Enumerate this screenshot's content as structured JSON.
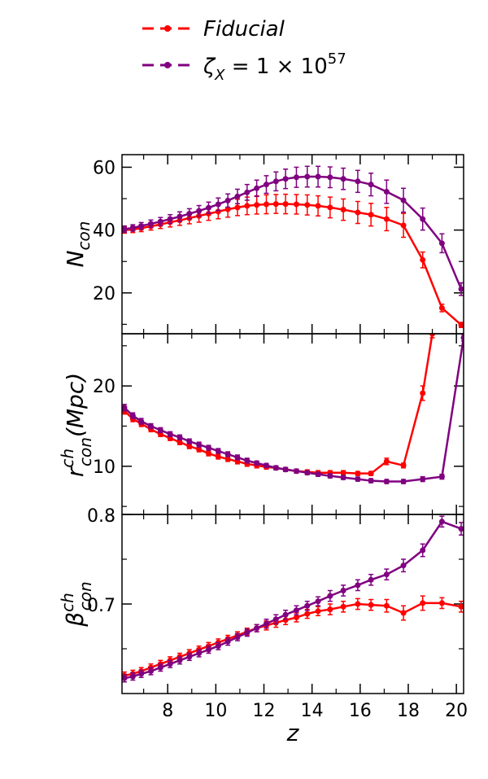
{
  "legend": [
    {
      "label": "Fiducial",
      "color": "#ff0000",
      "series": "fiducial"
    },
    {
      "label_base": "ζ",
      "label_sub": "X",
      "label_mid": " = 1 × 10",
      "label_sup": "57",
      "color": "#800080",
      "series": "zeta"
    }
  ],
  "chart_data": [
    {
      "type": "line",
      "panel": "top",
      "ylabel_base": "N",
      "ylabel_sub": "con",
      "xlim": [
        6.1,
        20.3
      ],
      "ylim": [
        7,
        64
      ],
      "yticks_major": [
        20,
        40,
        60
      ],
      "yticks_minor": [
        10,
        30,
        50
      ],
      "series": [
        {
          "name": "Fiducial",
          "color": "#ff0000",
          "x": [
            6.2,
            6.55,
            6.9,
            7.3,
            7.7,
            8.1,
            8.5,
            8.9,
            9.3,
            9.7,
            10.1,
            10.5,
            10.9,
            11.3,
            11.7,
            12.1,
            12.5,
            12.9,
            13.35,
            13.8,
            14.25,
            14.75,
            15.3,
            15.9,
            16.45,
            17.1,
            17.8,
            18.6,
            19.4,
            20.2
          ],
          "y": [
            40.0,
            40.2,
            40.6,
            41.2,
            41.8,
            42.5,
            43.1,
            43.8,
            44.5,
            45.2,
            45.9,
            46.6,
            47.2,
            47.7,
            48.0,
            48.2,
            48.3,
            48.3,
            48.2,
            48.0,
            47.7,
            47.2,
            46.5,
            45.6,
            44.9,
            43.5,
            41.5,
            30.5,
            15.2,
            9.8
          ],
          "yerr": [
            1.0,
            1.0,
            1.1,
            1.2,
            1.3,
            1.5,
            1.6,
            1.8,
            2.0,
            2.1,
            2.3,
            2.5,
            2.6,
            2.8,
            2.9,
            3.0,
            3.0,
            3.1,
            3.1,
            3.2,
            3.2,
            3.3,
            3.4,
            3.5,
            3.6,
            3.7,
            3.8,
            2.5,
            1.2,
            0.8
          ]
        },
        {
          "name": "ζX = 1 × 10^57",
          "color": "#800080",
          "x": [
            6.2,
            6.55,
            6.9,
            7.3,
            7.7,
            8.1,
            8.5,
            8.9,
            9.3,
            9.7,
            10.1,
            10.5,
            10.9,
            11.3,
            11.7,
            12.1,
            12.5,
            12.9,
            13.35,
            13.8,
            14.25,
            14.75,
            15.3,
            15.9,
            16.45,
            17.1,
            17.8,
            18.6,
            19.4,
            20.2
          ],
          "y": [
            40.3,
            40.7,
            41.3,
            42.0,
            42.7,
            43.5,
            44.3,
            45.2,
            46.1,
            47.1,
            48.2,
            49.4,
            50.7,
            52.0,
            53.3,
            54.5,
            55.5,
            56.3,
            56.8,
            57.0,
            57.0,
            56.8,
            56.3,
            55.5,
            54.5,
            52.2,
            49.5,
            43.5,
            35.8,
            21.2
          ],
          "yerr": [
            1.0,
            1.0,
            1.1,
            1.2,
            1.3,
            1.4,
            1.5,
            1.6,
            1.7,
            1.8,
            2.0,
            2.1,
            2.3,
            2.5,
            2.6,
            2.8,
            3.0,
            3.1,
            3.2,
            3.3,
            3.3,
            3.3,
            3.4,
            3.5,
            3.6,
            3.7,
            3.8,
            3.5,
            3.0,
            2.0
          ]
        }
      ]
    },
    {
      "type": "line",
      "panel": "middle",
      "ylabel_base": "r",
      "ylabel_sup": "ch",
      "ylabel_sub": "con",
      "ylabel_suffix": "(Mpc)",
      "xlim": [
        6.1,
        20.3
      ],
      "ylim": [
        4,
        26.5
      ],
      "yticks_major": [
        10,
        20
      ],
      "yticks_minor": [
        5,
        15,
        25
      ],
      "series": [
        {
          "name": "Fiducial",
          "color": "#ff0000",
          "x": [
            6.2,
            6.55,
            6.9,
            7.3,
            7.7,
            8.1,
            8.5,
            8.9,
            9.3,
            9.7,
            10.1,
            10.5,
            10.9,
            11.3,
            11.7,
            12.1,
            12.5,
            12.9,
            13.35,
            13.8,
            14.25,
            14.75,
            15.3,
            15.9,
            16.45,
            17.1,
            17.8,
            18.6,
            19.0
          ],
          "y": [
            16.9,
            15.9,
            15.3,
            14.6,
            14.0,
            13.5,
            13.0,
            12.5,
            12.1,
            11.6,
            11.2,
            10.9,
            10.6,
            10.3,
            10.1,
            9.9,
            9.8,
            9.6,
            9.4,
            9.3,
            9.2,
            9.2,
            9.2,
            9.1,
            9.1,
            10.6,
            10.1,
            19.1,
            26.5
          ],
          "yerr": [
            0.4,
            0.35,
            0.35,
            0.3,
            0.3,
            0.3,
            0.3,
            0.3,
            0.3,
            0.3,
            0.3,
            0.3,
            0.3,
            0.3,
            0.3,
            0.25,
            0.25,
            0.25,
            0.25,
            0.25,
            0.25,
            0.25,
            0.25,
            0.25,
            0.25,
            0.4,
            0.3,
            0.9,
            0.5
          ]
        },
        {
          "name": "ζX = 1 × 10^57",
          "color": "#800080",
          "x": [
            6.2,
            6.55,
            6.9,
            7.3,
            7.7,
            8.1,
            8.5,
            8.9,
            9.3,
            9.7,
            10.1,
            10.5,
            10.9,
            11.3,
            11.7,
            12.1,
            12.5,
            12.9,
            13.35,
            13.8,
            14.25,
            14.75,
            15.3,
            15.9,
            16.45,
            17.1,
            17.8,
            18.6,
            19.4,
            20.3
          ],
          "y": [
            17.3,
            16.3,
            15.6,
            15.0,
            14.5,
            14.0,
            13.6,
            13.1,
            12.7,
            12.3,
            11.9,
            11.5,
            11.1,
            10.7,
            10.4,
            10.1,
            9.8,
            9.6,
            9.4,
            9.2,
            9.0,
            8.8,
            8.6,
            8.4,
            8.2,
            8.1,
            8.1,
            8.4,
            8.7,
            26.0
          ],
          "yerr": [
            0.4,
            0.35,
            0.35,
            0.3,
            0.3,
            0.3,
            0.3,
            0.3,
            0.3,
            0.3,
            0.3,
            0.3,
            0.3,
            0.3,
            0.25,
            0.25,
            0.25,
            0.25,
            0.25,
            0.25,
            0.25,
            0.25,
            0.25,
            0.25,
            0.25,
            0.25,
            0.25,
            0.3,
            0.3,
            0.4
          ]
        }
      ]
    },
    {
      "type": "line",
      "panel": "bottom",
      "ylabel_base": "β",
      "ylabel_sup": "ch",
      "ylabel_sub": "con",
      "xlabel": "z",
      "xlim": [
        6.1,
        20.3
      ],
      "ylim": [
        0.6,
        0.8
      ],
      "yticks_major": [
        0.7,
        0.8
      ],
      "yticks_minor": [
        0.65,
        0.75
      ],
      "xticks_major": [
        8,
        10,
        12,
        14,
        16,
        18,
        20
      ],
      "xticks_minor": [
        7,
        9,
        11,
        13,
        15,
        17,
        19
      ],
      "xticklabels": [
        "8",
        "10",
        "12",
        "14",
        "16",
        "18",
        "20"
      ],
      "series": [
        {
          "name": "Fiducial",
          "color": "#ff0000",
          "x": [
            6.2,
            6.55,
            6.9,
            7.3,
            7.7,
            8.1,
            8.5,
            8.9,
            9.3,
            9.7,
            10.1,
            10.5,
            10.9,
            11.3,
            11.7,
            12.1,
            12.5,
            12.9,
            13.35,
            13.8,
            14.25,
            14.75,
            15.3,
            15.9,
            16.45,
            17.1,
            17.8,
            18.6,
            19.4,
            20.2
          ],
          "y": [
            0.62,
            0.622,
            0.625,
            0.629,
            0.633,
            0.637,
            0.641,
            0.645,
            0.649,
            0.653,
            0.657,
            0.661,
            0.665,
            0.669,
            0.673,
            0.676,
            0.679,
            0.682,
            0.685,
            0.689,
            0.692,
            0.694,
            0.697,
            0.7,
            0.699,
            0.698,
            0.69,
            0.701,
            0.701,
            0.697
          ],
          "yerr": [
            0.004,
            0.004,
            0.004,
            0.004,
            0.004,
            0.004,
            0.004,
            0.004,
            0.004,
            0.004,
            0.004,
            0.004,
            0.004,
            0.004,
            0.004,
            0.005,
            0.005,
            0.005,
            0.005,
            0.005,
            0.005,
            0.006,
            0.006,
            0.006,
            0.006,
            0.007,
            0.008,
            0.008,
            0.006,
            0.006
          ]
        },
        {
          "name": "ζX = 1 × 10^57",
          "color": "#800080",
          "x": [
            6.2,
            6.55,
            6.9,
            7.3,
            7.7,
            8.1,
            8.5,
            8.9,
            9.3,
            9.7,
            10.1,
            10.5,
            10.9,
            11.3,
            11.7,
            12.1,
            12.5,
            12.9,
            13.35,
            13.8,
            14.25,
            14.75,
            15.3,
            15.9,
            16.45,
            17.1,
            17.8,
            18.6,
            19.4,
            20.2
          ],
          "y": [
            0.617,
            0.619,
            0.622,
            0.625,
            0.629,
            0.633,
            0.637,
            0.641,
            0.645,
            0.649,
            0.653,
            0.658,
            0.663,
            0.668,
            0.673,
            0.678,
            0.683,
            0.688,
            0.693,
            0.698,
            0.703,
            0.709,
            0.715,
            0.721,
            0.727,
            0.733,
            0.743,
            0.76,
            0.792,
            0.784
          ],
          "yerr": [
            0.004,
            0.004,
            0.004,
            0.004,
            0.004,
            0.004,
            0.004,
            0.004,
            0.004,
            0.004,
            0.004,
            0.004,
            0.004,
            0.004,
            0.004,
            0.005,
            0.005,
            0.005,
            0.005,
            0.005,
            0.005,
            0.006,
            0.006,
            0.006,
            0.006,
            0.006,
            0.007,
            0.007,
            0.006,
            0.007
          ]
        }
      ]
    }
  ]
}
